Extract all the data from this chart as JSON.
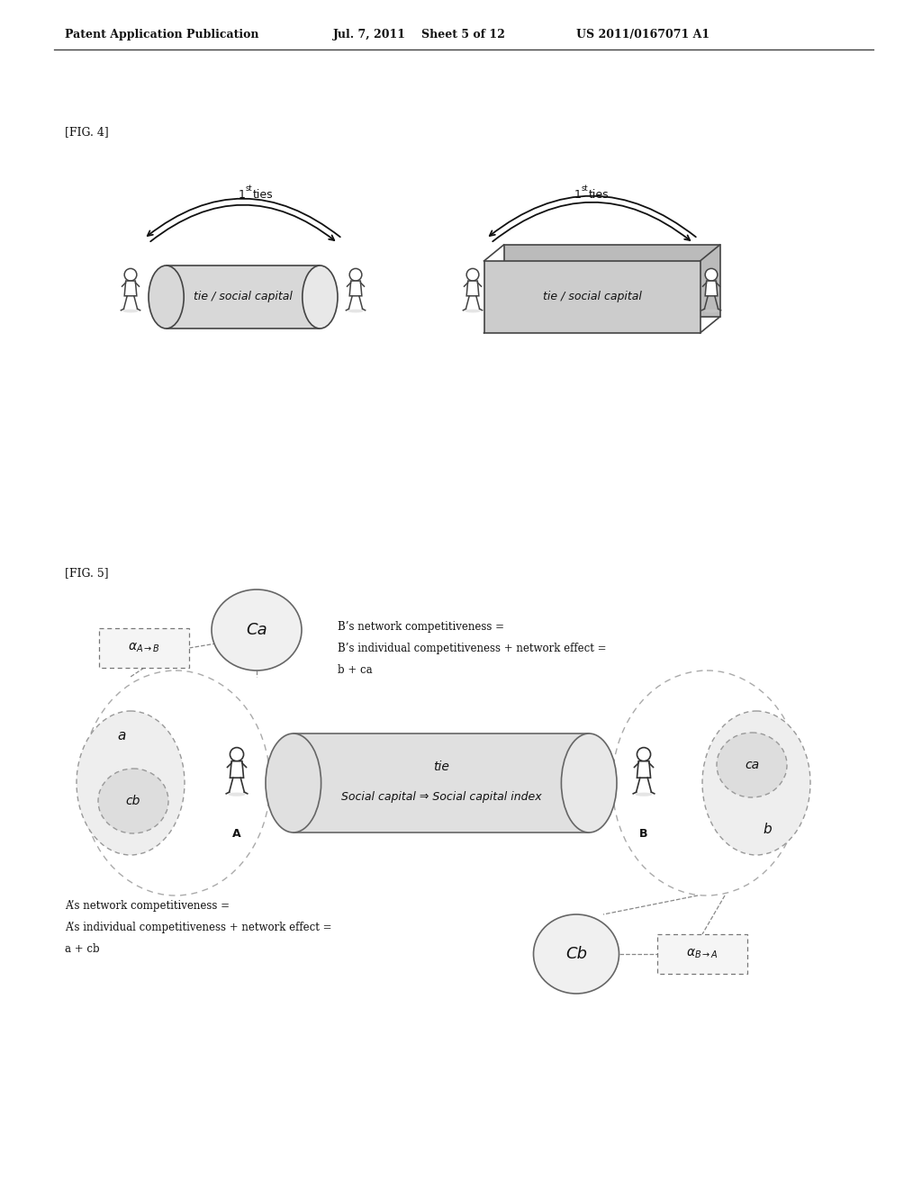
{
  "bg_color": "#ffffff",
  "header_text": "Patent Application Publication",
  "header_date": "Jul. 7, 2011",
  "header_sheet": "Sheet 5 of 12",
  "header_patent": "US 2011/0167071 A1",
  "fig4_label": "[FIG. 4]",
  "fig5_label": "[FIG. 5]",
  "tie_social_capital": "tie / social capital",
  "fig5_tie_label": "tie",
  "fig5_social_capital_label": "Social capital ⇒ Social capital index",
  "b_network_line1": "B’s network competitiveness =",
  "b_network_line2": "B’s individual competitiveness + network effect =",
  "b_network_line3": "b + ca",
  "a_network_line1": "A’s network competitiveness =",
  "a_network_line2": "A’s individual competitiveness + network effect =",
  "a_network_line3": "a + cb",
  "cylinder_fill": "#d8d8d8",
  "cylinder_edge": "#444444",
  "box_fill": "#cccccc",
  "box_edge": "#444444",
  "circle_fill": "#f0f0f0",
  "circle_edge": "#666666",
  "dashed_fill": "#e8e8e8",
  "dashed_edge": "#888888",
  "dashed_box_fill": "#f5f5f5",
  "dashed_box_edge": "#777777",
  "person_color": "#555555",
  "arrow_color": "#111111",
  "text_color": "#111111"
}
